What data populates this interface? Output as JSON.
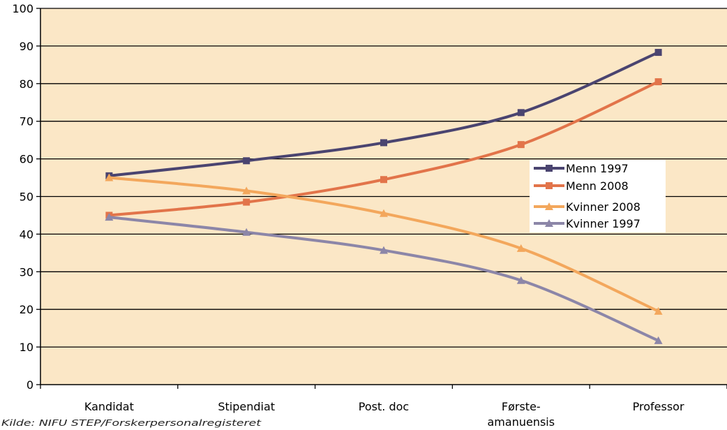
{
  "chart_data": {
    "type": "line",
    "categories": [
      "Kandidat",
      "Stipendiat",
      "Post. doc",
      "Første-\namanuensis",
      "Professor"
    ],
    "ylim": [
      0,
      100
    ],
    "yticks": [
      0,
      10,
      20,
      30,
      40,
      50,
      60,
      70,
      80,
      90,
      100
    ],
    "grid": true,
    "legend_position": "right",
    "plot_background": "#FBE7C6",
    "series": [
      {
        "name": "Menn 1997",
        "color": "#4A4470",
        "marker": "square",
        "values": [
          55.5,
          59.5,
          64.3,
          72.3,
          88.3
        ]
      },
      {
        "name": "Menn 2008",
        "color": "#E2744A",
        "marker": "square",
        "values": [
          45.0,
          48.5,
          54.5,
          63.8,
          80.5
        ]
      },
      {
        "name": "Kvinner 2008",
        "color": "#F3A75C",
        "marker": "triangle",
        "values": [
          55.0,
          51.5,
          45.5,
          36.2,
          19.5
        ]
      },
      {
        "name": "Kvinner 1997",
        "color": "#8C86A8",
        "marker": "triangle",
        "values": [
          44.5,
          40.5,
          35.7,
          27.7,
          11.7
        ]
      }
    ]
  },
  "source_note": "Kilde: NIFU STEP/Forskerpersonalregisteret"
}
